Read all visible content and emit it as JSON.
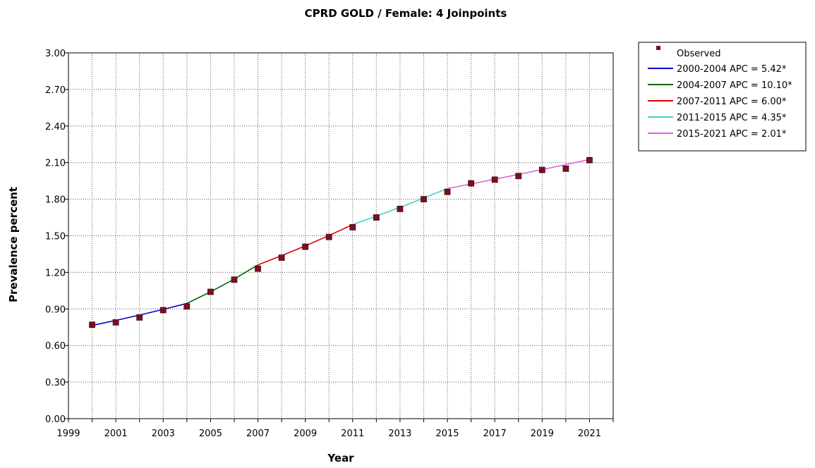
{
  "chart_data": {
    "type": "line",
    "title": "CPRD GOLD / Female: 4 Joinpoints",
    "xlabel": "Year",
    "ylabel": "Prevalence percent",
    "xlim": [
      1999,
      2022
    ],
    "ylim": [
      0,
      3.0
    ],
    "x_ticks": [
      "1999",
      "2001",
      "2003",
      "2005",
      "2007",
      "2009",
      "2011",
      "2013",
      "2015",
      "2017",
      "2019",
      "2021"
    ],
    "y_ticks": [
      "0.00",
      "0.30",
      "0.60",
      "0.90",
      "1.20",
      "1.50",
      "1.80",
      "2.10",
      "2.40",
      "2.70",
      "3.00"
    ],
    "grid": true,
    "legend_position": "right",
    "observed": {
      "name": "Observed",
      "color": "#7a1020",
      "x": [
        2000,
        2001,
        2002,
        2003,
        2004,
        2005,
        2006,
        2007,
        2008,
        2009,
        2010,
        2011,
        2012,
        2013,
        2014,
        2015,
        2016,
        2017,
        2018,
        2019,
        2020,
        2021
      ],
      "y": [
        0.77,
        0.79,
        0.83,
        0.89,
        0.92,
        1.04,
        1.14,
        1.23,
        1.32,
        1.41,
        1.49,
        1.57,
        1.65,
        1.72,
        1.8,
        1.86,
        1.93,
        1.96,
        1.99,
        2.04,
        2.05,
        2.12
      ]
    },
    "series": [
      {
        "name": "2000-2004 APC  =  5.42*",
        "color": "#0000c8",
        "x": [
          2000,
          2001,
          2002,
          2003,
          2004
        ],
        "y": [
          0.765,
          0.806,
          0.85,
          0.896,
          0.945
        ]
      },
      {
        "name": "2004-2007 APC  =  10.10*",
        "color": "#006400",
        "x": [
          2004,
          2005,
          2006,
          2007
        ],
        "y": [
          0.945,
          1.04,
          1.145,
          1.261
        ]
      },
      {
        "name": "2007-2011 APC  =  6.00*",
        "color": "#e00000",
        "x": [
          2007,
          2008,
          2009,
          2010,
          2011
        ],
        "y": [
          1.261,
          1.337,
          1.417,
          1.502,
          1.592
        ]
      },
      {
        "name": "2011-2015 APC  =  4.35*",
        "color": "#40d0c8",
        "x": [
          2011,
          2012,
          2013,
          2014,
          2015
        ],
        "y": [
          1.592,
          1.661,
          1.733,
          1.809,
          1.887
        ]
      },
      {
        "name": "2015-2021 APC  =  2.01*",
        "color": "#e060e0",
        "x": [
          2015,
          2016,
          2017,
          2018,
          2019,
          2020,
          2021
        ],
        "y": [
          1.887,
          1.925,
          1.964,
          2.003,
          2.043,
          2.084,
          2.126
        ]
      }
    ]
  }
}
